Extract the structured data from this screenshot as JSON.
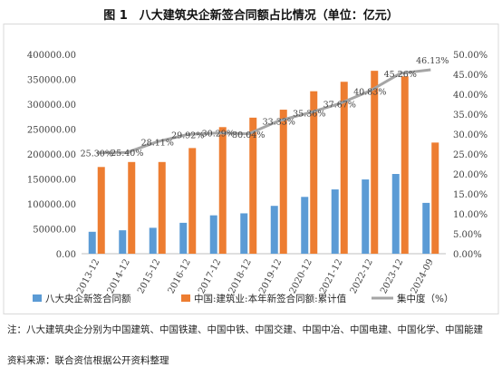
{
  "title": "图 1　八大建筑央企新签合同额占比情况（单位：亿元）",
  "chart_data": {
    "type": "bar",
    "categories": [
      "2013-12",
      "2014-12",
      "2015-12",
      "2016-12",
      "2017-12",
      "2018-12",
      "2019-12",
      "2020-12",
      "2021-12",
      "2022-12",
      "2023-12",
      "2024-09"
    ],
    "series": [
      {
        "name": "八大央企新签合同额",
        "type": "bar",
        "axis": "left",
        "color": "#5b9bd5",
        "values": [
          44000,
          47000,
          52000,
          62000,
          77000,
          81000,
          96000,
          114000,
          129000,
          149000,
          160000,
          102000
        ]
      },
      {
        "name": "中国:建筑业:本年新签合同额:累计值",
        "type": "bar",
        "axis": "left",
        "color": "#ed7d31",
        "values": [
          174000,
          184000,
          184000,
          212000,
          254000,
          273000,
          289000,
          326000,
          345000,
          367000,
          356000,
          223000
        ]
      },
      {
        "name": "集中度（%）",
        "type": "line",
        "axis": "right",
        "color": "#a5a5a5",
        "values": [
          25.3,
          25.4,
          28.11,
          29.92,
          30.29,
          30.04,
          33.33,
          35.36,
          37.67,
          40.83,
          45.26,
          46.13
        ],
        "labels": [
          "25.30%",
          "25.40%",
          "28.11%",
          "29.92%",
          "30.29%",
          "30.04%",
          "33.33%",
          "35.36%",
          "37.67%",
          "40.83%",
          "45.26%",
          "46.13%"
        ]
      }
    ],
    "y_left": {
      "min": 0,
      "max": 400000,
      "step": 50000,
      "ticks": [
        "0.00",
        "50000.00",
        "100000.00",
        "150000.00",
        "200000.00",
        "250000.00",
        "300000.00",
        "350000.00",
        "400000.00"
      ]
    },
    "y_right": {
      "min": 0,
      "max": 50,
      "step": 5,
      "ticks": [
        "0.00%",
        "5.00%",
        "10.00%",
        "15.00%",
        "20.00%",
        "25.00%",
        "30.00%",
        "35.00%",
        "40.00%",
        "45.00%",
        "50.00%"
      ]
    },
    "grid": false,
    "legend_position": "bottom",
    "legend": [
      "八大央企新签合同额",
      "中国:建筑业:本年新签合同额:累计值",
      "集中度（%）"
    ]
  },
  "notes": {
    "note1": "注：八大建筑央企分别为中国建筑、中国铁建、中国中铁、中国交建、中国中冶、中国电建、中国化学、中国能建",
    "note2": "资料来源：联合资信根据公开资料整理"
  }
}
